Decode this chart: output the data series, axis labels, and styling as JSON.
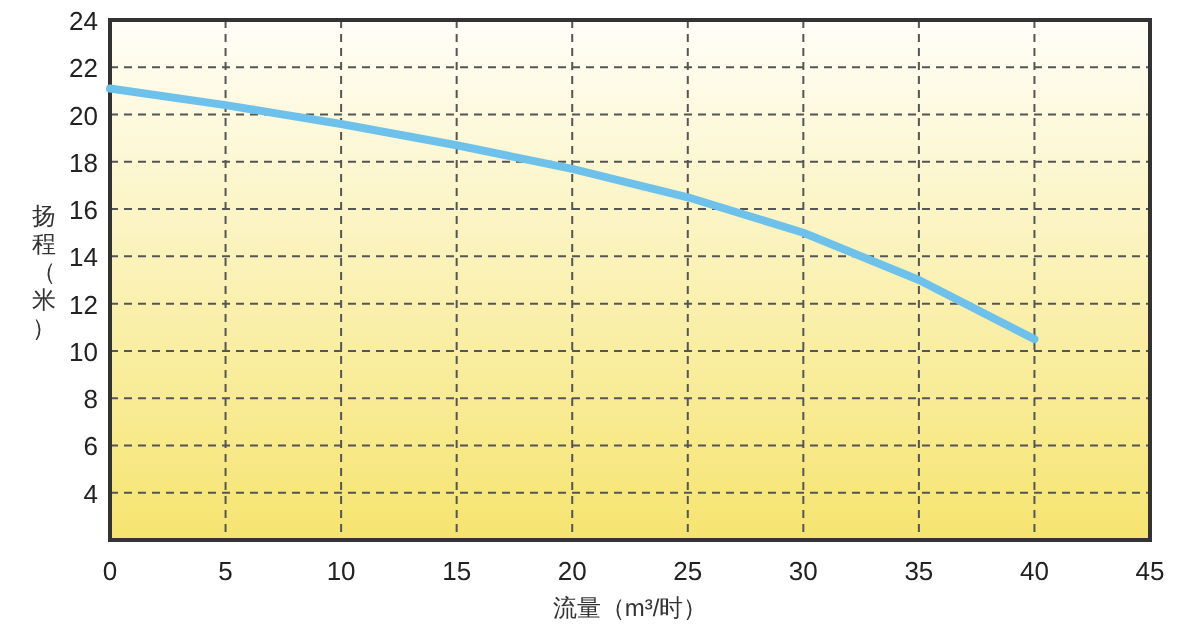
{
  "chart_data": {
    "type": "line",
    "xlabel": "流量（m³/时）",
    "ylabel": "扬程（米）",
    "x": [
      0,
      5,
      10,
      15,
      20,
      25,
      30,
      35,
      40
    ],
    "series": [
      {
        "color": "#6ec1ea",
        "values": [
          21.1,
          20.4,
          19.6,
          18.7,
          17.7,
          16.5,
          15.0,
          13.0,
          10.5
        ]
      }
    ],
    "xlim": [
      0,
      45
    ],
    "ylim": [
      2,
      24
    ],
    "xticks": [
      0,
      5,
      10,
      15,
      20,
      25,
      30,
      35,
      40,
      45
    ],
    "yticks": [
      4,
      6,
      8,
      10,
      12,
      14,
      16,
      18,
      20,
      22,
      24
    ],
    "grid": true,
    "marker": "none",
    "line_style": "solid"
  }
}
